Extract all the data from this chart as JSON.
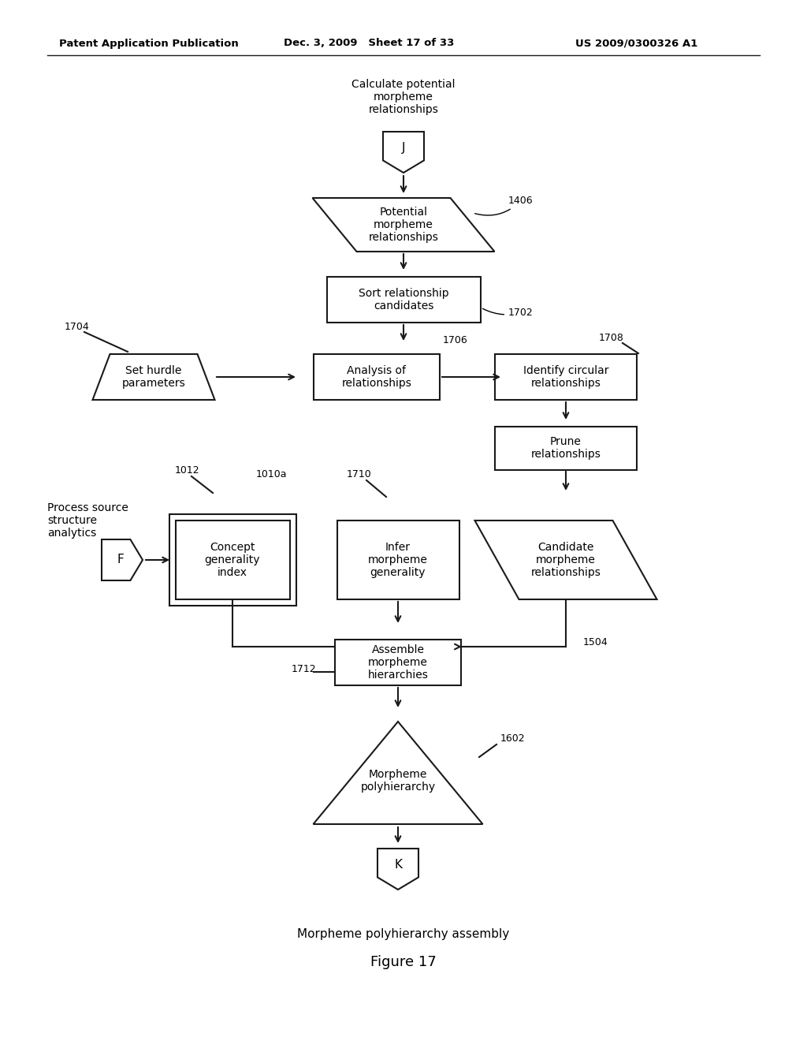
{
  "bg_color": "#ffffff",
  "line_color": "#1a1a1a",
  "text_color": "#000000",
  "header_left": "Patent Application Publication",
  "header_mid": "Dec. 3, 2009   Sheet 17 of 33",
  "header_right": "US 2009/0300326 A1",
  "footer_label": "Morpheme polyhierarchy assembly",
  "figure_label": "Figure 17",
  "calc_potential_text": "Calculate potential\nmorpheme\nrelationships",
  "process_source_text": "Process source\nstructure\nanalytics"
}
